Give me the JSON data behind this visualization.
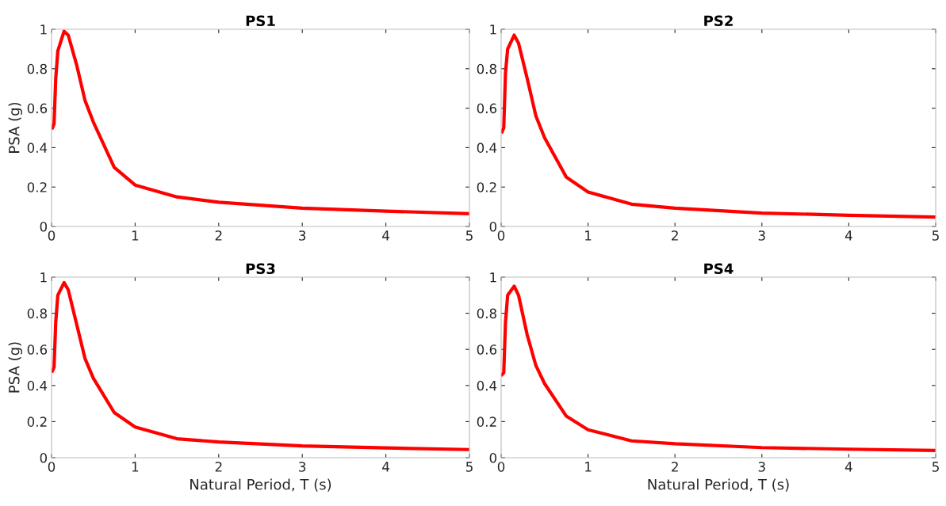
{
  "chart_data": [
    {
      "type": "line",
      "title": "PS1",
      "ylabel": "PSA (g)",
      "x": [
        0.01,
        0.03,
        0.05,
        0.075,
        0.15,
        0.2,
        0.3,
        0.4,
        0.5,
        0.75,
        1,
        1.5,
        2,
        3,
        4,
        5
      ],
      "series": [
        {
          "color": "#ff0000",
          "values": [
            0.5,
            0.52,
            0.75,
            0.89,
            0.99,
            0.97,
            0.82,
            0.64,
            0.53,
            0.3,
            0.21,
            0.15,
            0.123,
            0.093,
            0.078,
            0.065
          ]
        }
      ],
      "xlim": [
        0,
        5
      ],
      "ylim": [
        0,
        1
      ],
      "xticks": [
        0,
        1,
        2,
        3,
        4,
        5
      ],
      "yticks": [
        0,
        0.2,
        0.4,
        0.6,
        0.8,
        1
      ],
      "grid": false,
      "legend": false
    },
    {
      "type": "line",
      "title": "PS2",
      "x": [
        0.01,
        0.03,
        0.05,
        0.075,
        0.15,
        0.2,
        0.3,
        0.4,
        0.5,
        0.75,
        1,
        1.5,
        2,
        3,
        4,
        5
      ],
      "series": [
        {
          "color": "#ff0000",
          "values": [
            0.48,
            0.5,
            0.78,
            0.9,
            0.97,
            0.93,
            0.75,
            0.56,
            0.45,
            0.25,
            0.175,
            0.113,
            0.093,
            0.068,
            0.057,
            0.048
          ]
        }
      ],
      "xlim": [
        0,
        5
      ],
      "ylim": [
        0,
        1
      ],
      "xticks": [
        0,
        1,
        2,
        3,
        4,
        5
      ],
      "yticks": [
        0,
        0.2,
        0.4,
        0.6,
        0.8,
        1
      ],
      "grid": false,
      "legend": false
    },
    {
      "type": "line",
      "title": "PS3",
      "ylabel": "PSA (g)",
      "xlabel": "Natural Period, T (s)",
      "x": [
        0.01,
        0.03,
        0.05,
        0.075,
        0.15,
        0.2,
        0.3,
        0.4,
        0.5,
        0.75,
        1,
        1.5,
        2,
        3,
        4,
        5
      ],
      "series": [
        {
          "color": "#ff0000",
          "values": [
            0.48,
            0.5,
            0.75,
            0.9,
            0.97,
            0.93,
            0.74,
            0.55,
            0.44,
            0.25,
            0.17,
            0.105,
            0.087,
            0.065,
            0.054,
            0.045
          ]
        }
      ],
      "xlim": [
        0,
        5
      ],
      "ylim": [
        0,
        1
      ],
      "xticks": [
        0,
        1,
        2,
        3,
        4,
        5
      ],
      "yticks": [
        0,
        0.2,
        0.4,
        0.6,
        0.8,
        1
      ],
      "grid": false,
      "legend": false
    },
    {
      "type": "line",
      "title": "PS4",
      "xlabel": "Natural Period, T (s)",
      "x": [
        0.01,
        0.03,
        0.05,
        0.075,
        0.15,
        0.2,
        0.3,
        0.4,
        0.5,
        0.75,
        1,
        1.5,
        2,
        3,
        4,
        5
      ],
      "series": [
        {
          "color": "#ff0000",
          "values": [
            0.46,
            0.47,
            0.75,
            0.9,
            0.95,
            0.9,
            0.68,
            0.51,
            0.41,
            0.23,
            0.155,
            0.093,
            0.077,
            0.056,
            0.047,
            0.04
          ]
        }
      ],
      "xlim": [
        0,
        5
      ],
      "ylim": [
        0,
        1
      ],
      "xticks": [
        0,
        1,
        2,
        3,
        4,
        5
      ],
      "yticks": [
        0,
        0.2,
        0.4,
        0.6,
        0.8,
        1
      ],
      "grid": false,
      "legend": false
    }
  ]
}
